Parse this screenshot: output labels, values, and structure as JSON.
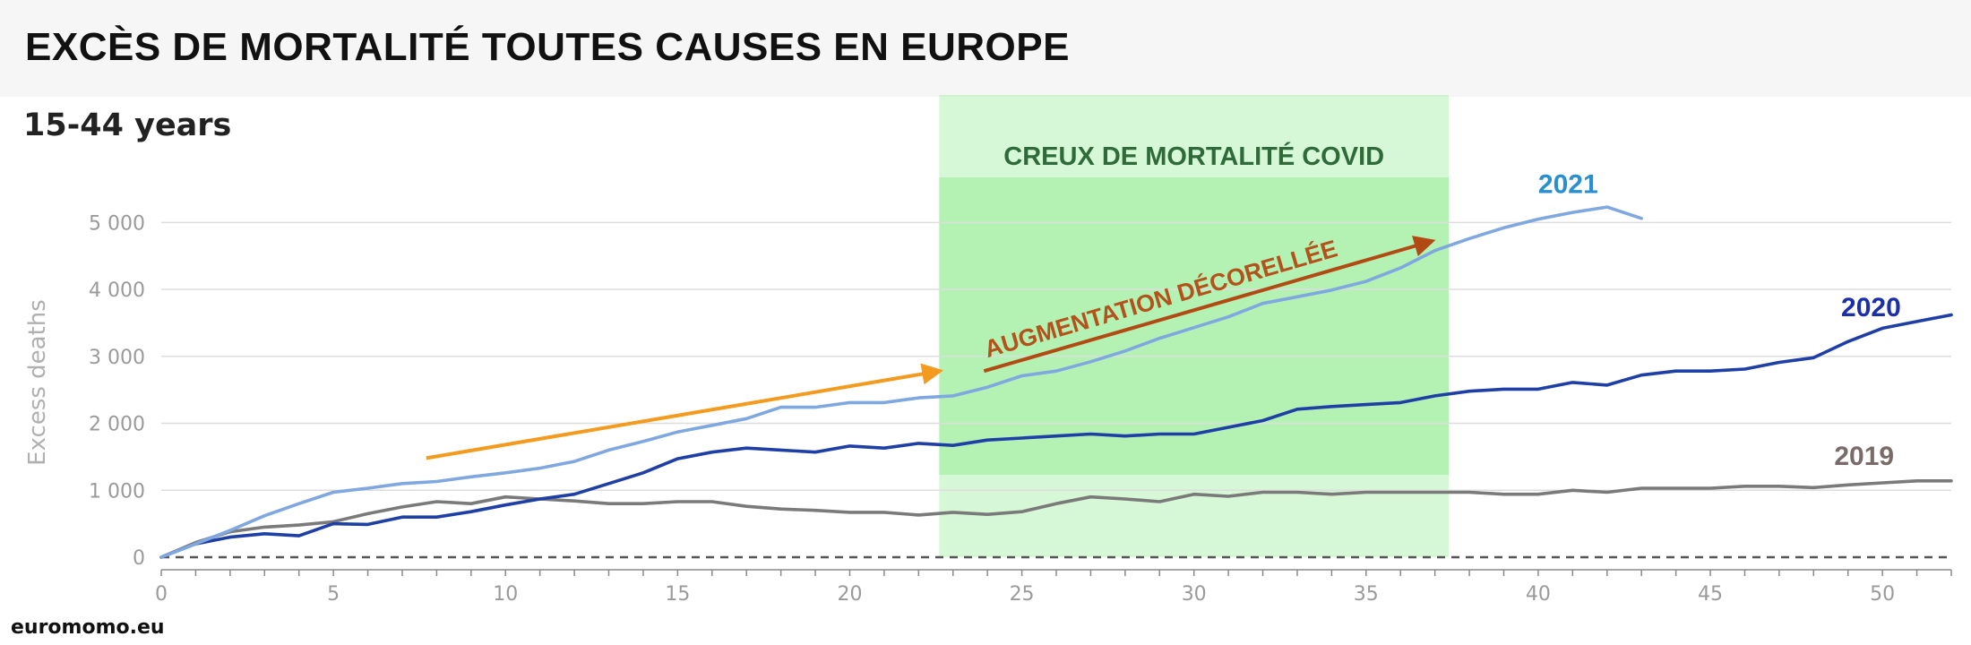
{
  "header": {
    "title": "EXCÈS DE MORTALITÉ TOUTES CAUSES EN EUROPE",
    "subtitle": "15-44 years",
    "source": "euromomo.eu"
  },
  "colors": {
    "s2019": "#7a7a7a",
    "s2020": "#1e3fa6",
    "s2021": "#7fa7e0",
    "label2019": "#7a6b6b",
    "label2020": "#1a2fa8",
    "label2021": "#2a8fcf",
    "band": "#7ee87e",
    "bandText": "#2f6b3a",
    "arrowOrange": "#f39a1f",
    "arrowRed": "#b24a14",
    "annRed": "#b3521a",
    "grid": "#dddddd",
    "axis": "#8a8a8a"
  },
  "chart_data": {
    "type": "line",
    "title": "EXCÈS DE MORTALITÉ TOUTES CAUSES EN EUROPE",
    "subtitle": "15-44 years",
    "xlabel": "",
    "ylabel": "Excess deaths",
    "xlim": [
      0,
      52
    ],
    "ylim": [
      0,
      5700
    ],
    "x_ticks": [
      0,
      5,
      10,
      15,
      20,
      25,
      30,
      35,
      40,
      45,
      50
    ],
    "x_tick_labels": [
      "0",
      "5",
      "10",
      "15",
      "20",
      "25",
      "30",
      "35",
      "40",
      "45",
      "50"
    ],
    "y_ticks": [
      0,
      1000,
      2000,
      3000,
      4000,
      5000
    ],
    "y_tick_labels": [
      "0",
      "1 000",
      "2 000",
      "3 000",
      "4 000",
      "5 000"
    ],
    "grid": true,
    "legend": "inline labels",
    "series": [
      {
        "name": "2019",
        "color": "#7a7a7a",
        "x": [
          0,
          1,
          2,
          3,
          4,
          5,
          6,
          7,
          8,
          9,
          10,
          11,
          12,
          13,
          14,
          15,
          16,
          17,
          18,
          19,
          20,
          21,
          22,
          23,
          24,
          25,
          26,
          27,
          28,
          29,
          30,
          31,
          32,
          33,
          34,
          35,
          36,
          37,
          38,
          39,
          40,
          41,
          42,
          43,
          44,
          45,
          46,
          47,
          48,
          49,
          50,
          51,
          52
        ],
        "values": [
          0,
          220,
          380,
          450,
          480,
          530,
          650,
          750,
          830,
          800,
          900,
          870,
          840,
          800,
          800,
          830,
          830,
          760,
          720,
          700,
          670,
          670,
          630,
          670,
          640,
          680,
          800,
          900,
          870,
          830,
          940,
          910,
          970,
          970,
          940,
          970,
          970,
          970,
          970,
          940,
          940,
          1000,
          970,
          1030,
          1030,
          1030,
          1060,
          1060,
          1040,
          1080,
          1110,
          1140,
          1140
        ]
      },
      {
        "name": "2020",
        "color": "#1e3fa6",
        "x": [
          0,
          1,
          2,
          3,
          4,
          5,
          6,
          7,
          8,
          9,
          10,
          11,
          12,
          13,
          14,
          15,
          16,
          17,
          18,
          19,
          20,
          21,
          22,
          23,
          24,
          25,
          26,
          27,
          28,
          29,
          30,
          31,
          32,
          33,
          34,
          35,
          36,
          37,
          38,
          39,
          40,
          41,
          42,
          43,
          44,
          45,
          46,
          47,
          48,
          49,
          50,
          51,
          52
        ],
        "values": [
          0,
          200,
          300,
          350,
          320,
          500,
          490,
          600,
          600,
          680,
          780,
          870,
          940,
          1100,
          1260,
          1470,
          1570,
          1630,
          1600,
          1570,
          1660,
          1630,
          1700,
          1670,
          1750,
          1780,
          1810,
          1840,
          1810,
          1840,
          1840,
          1940,
          2040,
          2210,
          2250,
          2280,
          2310,
          2410,
          2480,
          2510,
          2510,
          2610,
          2570,
          2720,
          2780,
          2780,
          2810,
          2910,
          2980,
          3220,
          3420,
          3520,
          3620
        ]
      },
      {
        "name": "2021",
        "color": "#7fa7e0",
        "x": [
          0,
          1,
          2,
          3,
          4,
          5,
          6,
          7,
          8,
          9,
          10,
          11,
          12,
          13,
          14,
          15,
          16,
          17,
          18,
          19,
          20,
          21,
          22,
          23,
          24,
          25,
          26,
          27,
          28,
          29,
          30,
          31,
          32,
          33,
          34,
          35,
          36,
          37,
          38,
          39,
          40,
          41,
          42,
          43
        ],
        "values": [
          0,
          200,
          400,
          620,
          800,
          970,
          1030,
          1100,
          1130,
          1200,
          1260,
          1330,
          1430,
          1600,
          1730,
          1870,
          1970,
          2070,
          2240,
          2240,
          2310,
          2310,
          2380,
          2410,
          2540,
          2710,
          2780,
          2920,
          3080,
          3270,
          3430,
          3590,
          3790,
          3890,
          3990,
          4120,
          4320,
          4580,
          4760,
          4920,
          5050,
          5150,
          5230,
          5060
        ]
      }
    ],
    "annotations": [
      {
        "text": "CREUX DE MORTALITÉ COVID",
        "x_range": [
          22.6,
          37.4
        ],
        "type": "shaded-band"
      },
      {
        "text": "AUGMENTATION DÉCORELLÉE",
        "type": "arrow-label"
      },
      {
        "text": "",
        "type": "arrow",
        "from": [
          7.7,
          1480
        ],
        "to": [
          22.6,
          2780
        ]
      },
      {
        "text": "",
        "type": "arrow",
        "from": [
          23.9,
          2780
        ],
        "to": [
          36.9,
          4720
        ]
      }
    ]
  }
}
